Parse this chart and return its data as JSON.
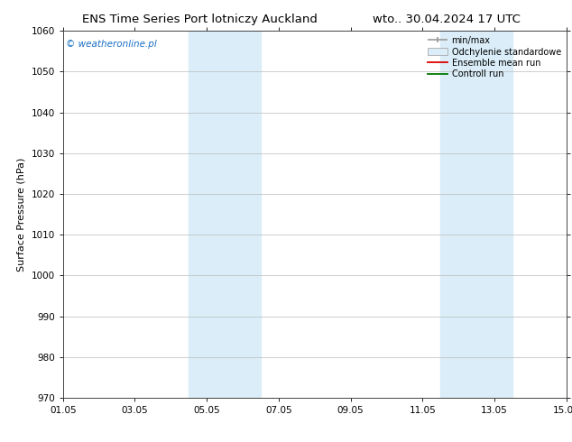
{
  "title_left": "ENS Time Series Port lotniczy Auckland",
  "title_right": "wto.. 30.04.2024 17 UTC",
  "ylabel": "Surface Pressure (hPa)",
  "ylim": [
    970,
    1060
  ],
  "yticks": [
    970,
    980,
    990,
    1000,
    1010,
    1020,
    1030,
    1040,
    1050,
    1060
  ],
  "xlim_start": 0,
  "xlim_end": 14,
  "xtick_labels": [
    "01.05",
    "03.05",
    "05.05",
    "07.05",
    "09.05",
    "11.05",
    "13.05",
    "15.05"
  ],
  "xtick_positions": [
    0,
    2,
    4,
    6,
    8,
    10,
    12,
    14
  ],
  "shaded_regions": [
    {
      "xmin": 3.5,
      "xmax": 5.5,
      "color": "#daedf8"
    },
    {
      "xmin": 10.5,
      "xmax": 12.5,
      "color": "#daedf8"
    }
  ],
  "watermark": "© weatheronline.pl",
  "watermark_color": "#1a6fc4",
  "background_color": "#ffffff",
  "plot_bg_color": "#ffffff",
  "grid_color": "#bbbbbb",
  "title_fontsize": 9.5,
  "ylabel_fontsize": 8,
  "tick_fontsize": 7.5,
  "legend_fontsize": 7,
  "watermark_fontsize": 7.5
}
